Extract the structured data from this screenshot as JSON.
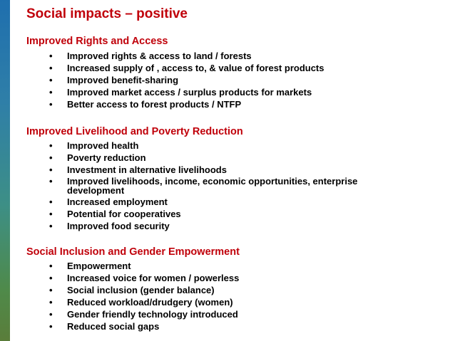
{
  "title": "Social impacts – positive",
  "bullet_glyph": "•",
  "sections": [
    {
      "heading": "Improved Rights and Access",
      "items": [
        "Improved rights & access to land / forests",
        "Increased supply of , access to, & value of forest products",
        "Improved benefit-sharing",
        "Improved market access / surplus products for markets",
        "Better access to forest products / NTFP"
      ]
    },
    {
      "heading": "Improved Livelihood and Poverty Reduction",
      "items": [
        "Improved health",
        "Poverty reduction",
        "Investment in alternative livelihoods",
        "Improved livelihoods, income, economic opportunities, enterprise development",
        "Increased employment",
        "Potential for cooperatives",
        "Improved food security"
      ]
    },
    {
      "heading": "Social Inclusion and Gender Empowerment",
      "items": [
        "Empowerment",
        "Increased voice for women / powerless",
        "Social inclusion (gender balance)",
        "Reduced workload/drudgery (women)",
        "Gender friendly technology introduced",
        "Reduced social gaps"
      ]
    }
  ],
  "colors": {
    "heading": "#c0000a",
    "body": "#000000"
  }
}
